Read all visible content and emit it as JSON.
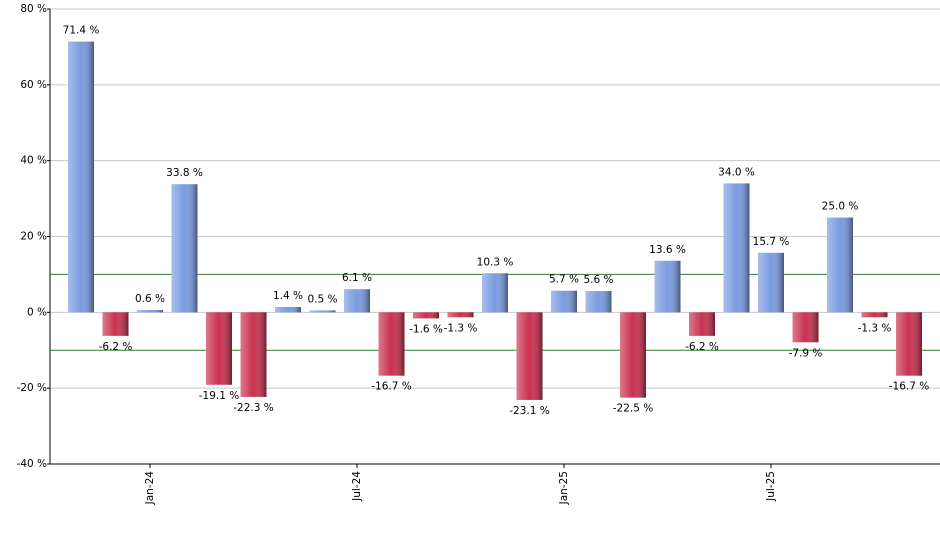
{
  "chart_data": {
    "type": "bar",
    "categories": [
      null,
      null,
      "Jan-24",
      null,
      null,
      null,
      null,
      null,
      "Jul-24",
      null,
      null,
      null,
      null,
      null,
      "Jan-25",
      null,
      null,
      null,
      null,
      null,
      "Jul-25",
      null,
      null,
      null,
      null
    ],
    "values": [
      71.4,
      -6.2,
      0.6,
      33.8,
      -19.1,
      -22.3,
      1.4,
      0.5,
      6.1,
      -16.7,
      -1.6,
      -1.3,
      10.3,
      -23.1,
      5.7,
      5.6,
      -22.5,
      13.6,
      -6.2,
      34.0,
      15.7,
      -7.9,
      25.0,
      -1.3,
      -16.7
    ],
    "value_labels": [
      "71.4 %",
      "-6.2 %",
      "0.6 %",
      "33.8 %",
      "-19.1 %",
      "-22.3 %",
      "1.4 %",
      "0.5 %",
      "6.1 %",
      "-16.7 %",
      "-1.6 %",
      "-1.3 %",
      "10.3 %",
      "-23.1 %",
      "5.7 %",
      "5.6 %",
      "-22.5 %",
      "13.6 %",
      "-6.2 %",
      "34.0 %",
      "15.7 %",
      "-7.9 %",
      "25.0 %",
      "-1.3 %",
      "-16.7 %"
    ],
    "positive_color": "#7a9be0",
    "negative_color": "#c9304f",
    "ylim": [
      -40,
      80
    ],
    "yticks": [
      {
        "value": -40,
        "label": "-40 %"
      },
      {
        "value": -20,
        "label": "-20 %"
      },
      {
        "value": 0,
        "label": "0 %"
      },
      {
        "value": 20,
        "label": "20 %"
      },
      {
        "value": 40,
        "label": "40 %"
      },
      {
        "value": 60,
        "label": "60 %"
      },
      {
        "value": 80,
        "label": "80 %"
      }
    ],
    "reference_lines": [
      10,
      -10
    ],
    "reference_color": "#2e7d32",
    "grid": true
  }
}
